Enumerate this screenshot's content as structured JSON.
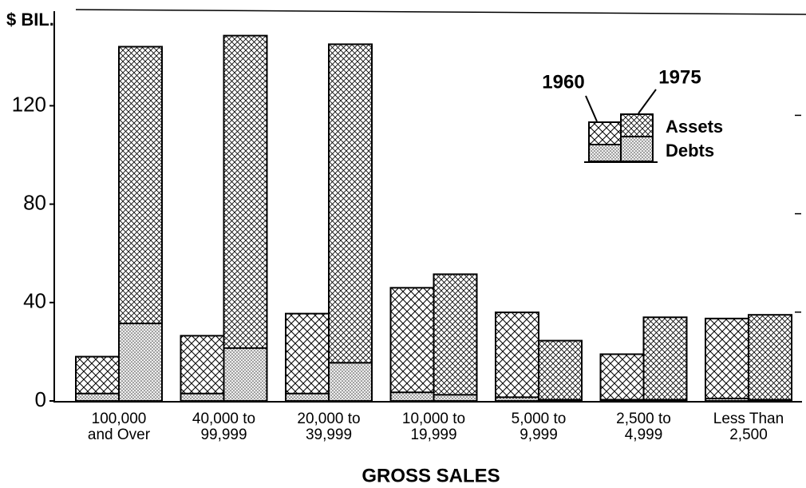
{
  "chart_data": {
    "type": "bar",
    "y_label": "$ BIL.",
    "x_label": "GROSS SALES",
    "categories": [
      "100,000\nand Over",
      "40,000 to\n99,999",
      "20,000 to\n39,999",
      "10,000 to\n19,999",
      "5,000 to\n9,999",
      "2,500 to\n4,999",
      "Less Than\n2,500"
    ],
    "segments": [
      "Assets",
      "Debts"
    ],
    "series": [
      {
        "name": "1960",
        "assets": [
          18,
          26.5,
          35.5,
          46,
          36,
          19,
          33.5
        ],
        "debts": [
          3,
          3,
          3,
          3.5,
          1.5,
          0.5,
          1
        ]
      },
      {
        "name": "1975",
        "assets": [
          144,
          148.5,
          145,
          51.5,
          24.5,
          34,
          35
        ],
        "debts": [
          31.5,
          21.5,
          15.5,
          2.5,
          0.5,
          0.5,
          0.5
        ]
      }
    ],
    "ylim": [
      0,
      150
    ],
    "yticks": [
      0,
      40,
      80,
      120
    ]
  }
}
